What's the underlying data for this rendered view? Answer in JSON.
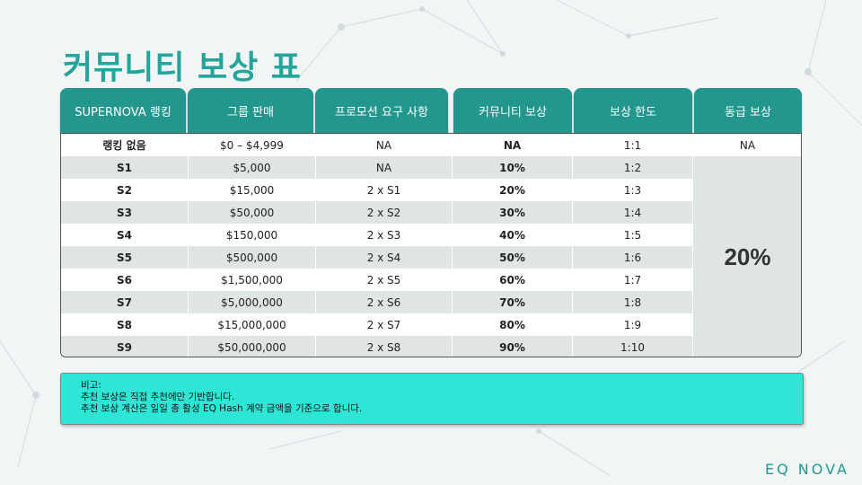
{
  "title": "커뮤니티 보상 표",
  "headers": [
    "SUPERNOVA 랭킹",
    "그룹 판매",
    "프로모션 요구 사항",
    "커뮤니티 보상",
    "보상 한도",
    "동급 보상"
  ],
  "rows": [
    {
      "rank": "랭킹 없음",
      "sales": "$0 – $4,999",
      "promo": "NA",
      "reward": "NA",
      "limit": "1:1"
    },
    {
      "rank": "S1",
      "sales": "$5,000",
      "promo": "NA",
      "reward": "10%",
      "limit": "1:2"
    },
    {
      "rank": "S2",
      "sales": "$15,000",
      "promo": "2 x S1",
      "reward": "20%",
      "limit": "1:3"
    },
    {
      "rank": "S3",
      "sales": "$50,000",
      "promo": "2 x S2",
      "reward": "30%",
      "limit": "1:4"
    },
    {
      "rank": "S4",
      "sales": "$150,000",
      "promo": "2 x S3",
      "reward": "40%",
      "limit": "1:5"
    },
    {
      "rank": "S5",
      "sales": "$500,000",
      "promo": "2 x S4",
      "reward": "50%",
      "limit": "1:6"
    },
    {
      "rank": "S6",
      "sales": "$1,500,000",
      "promo": "2 x S5",
      "reward": "60%",
      "limit": "1:7"
    },
    {
      "rank": "S7",
      "sales": "$5,000,000",
      "promo": "2 x S6",
      "reward": "70%",
      "limit": "1:8"
    },
    {
      "rank": "S8",
      "sales": "$15,000,000",
      "promo": "2 x S7",
      "reward": "80%",
      "limit": "1:9"
    },
    {
      "rank": "S9",
      "sales": "$50,000,000",
      "promo": "2 x S8",
      "reward": "90%",
      "limit": "1:10"
    }
  ],
  "peer_reward": {
    "first": "NA",
    "rest": "20%"
  },
  "notes": [
    "비고:",
    "추천 보상은 직접 추천에만 기반합니다.",
    "추천 보상 계산은 일일 총 활성 EQ Hash 계약 금액을 기준으로 합니다."
  ],
  "logo": "EQ NOVA",
  "colors": {
    "accent": "#25a59a",
    "header": "#23968e",
    "notes_bg": "#2ee6d6",
    "alt_row": "#dfe4e4"
  }
}
